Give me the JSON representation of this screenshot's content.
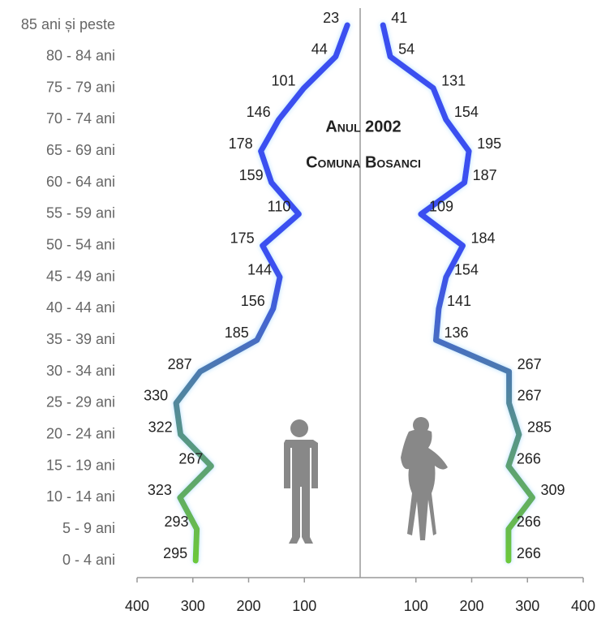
{
  "chart_data": {
    "type": "pyramid-line",
    "title": "Anul 2002",
    "subtitle": "Comuna Bosanci",
    "categories": [
      "85 ani și peste",
      "80 - 84 ani",
      "75 - 79 ani",
      "70 - 74 ani",
      "65 - 69 ani",
      "60 - 64 ani",
      "55 - 59 ani",
      "50 - 54 ani",
      "45 - 49 ani",
      "40 - 44 ani",
      "35 - 39 ani",
      "30 - 34 ani",
      "25 - 29 ani",
      "20 - 24 ani",
      "15 - 19 ani",
      "10 - 14 ani",
      "5 - 9 ani",
      "0 - 4 ani"
    ],
    "series": [
      {
        "values": [
          23,
          44,
          101,
          146,
          178,
          159,
          110,
          175,
          144,
          156,
          185,
          287,
          330,
          322,
          267,
          323,
          293,
          295
        ]
      },
      {
        "values": [
          41,
          54,
          131,
          154,
          195,
          187,
          109,
          184,
          154,
          141,
          136,
          267,
          267,
          285,
          266,
          309,
          266,
          266
        ]
      }
    ],
    "gradient": [
      "#3b4ff0",
      "#6cc83a"
    ],
    "xlim": [
      0,
      400
    ],
    "xticks": [
      100,
      200,
      300,
      400
    ]
  }
}
